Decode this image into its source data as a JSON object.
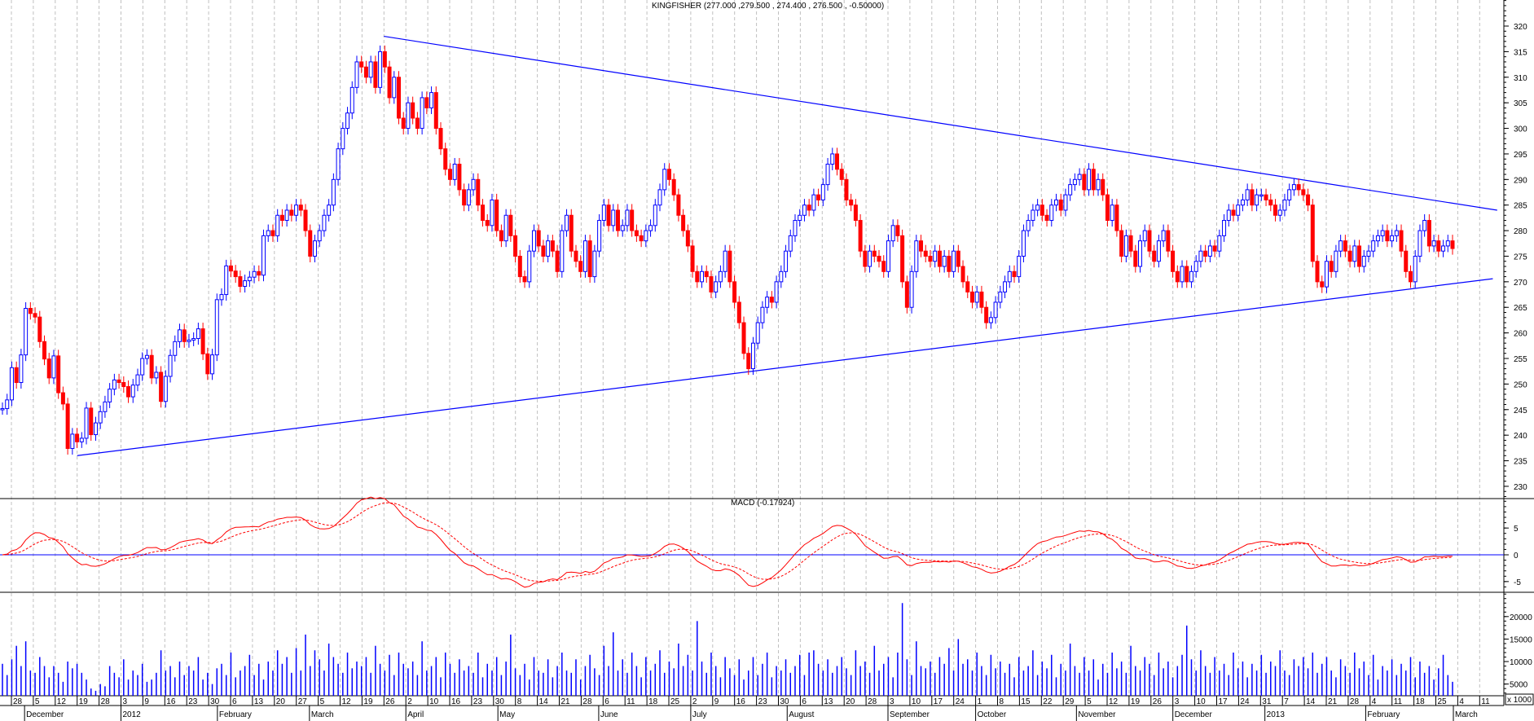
{
  "chart_data": [
    {
      "type": "candlestick",
      "title": "KINGFISHER (277.000 ,279.500 , 274.400 , 276.500 , -0.50000)",
      "ylim": [
        227.6,
        325.1
      ],
      "yticks": [
        230,
        235,
        240,
        245,
        250,
        255,
        260,
        265,
        270,
        275,
        280,
        285,
        290,
        295,
        300,
        305,
        310,
        315,
        320
      ],
      "grid": "vertical dashed at weekly ticks",
      "colors": {
        "up": "#0000ff",
        "down": "#ff0000",
        "trendline": "#0000ff"
      },
      "last_bar": {
        "open": 277.0,
        "high": 279.5,
        "low": 274.4,
        "close": 276.5,
        "change": -0.5
      },
      "close": [
        245.2,
        246.9,
        253.2,
        250.3,
        255.7,
        264.8,
        263.8,
        263.1,
        258.3,
        254.9,
        251.2,
        255.5,
        248.3,
        246.1,
        237.4,
        240.2,
        238.7,
        239.4,
        245.3,
        240.1,
        242.4,
        244.6,
        246.5,
        249,
        250.8,
        250.3,
        249.5,
        247.5,
        249.8,
        251.8,
        255,
        255.6,
        251.2,
        252.3,
        246.6,
        251.5,
        255.6,
        258.3,
        260.6,
        258.3,
        258.6,
        258.9,
        260.8,
        255.9,
        252,
        255.7,
        266.5,
        267.5,
        273.1,
        272.1,
        271,
        269.1,
        270.2,
        270.9,
        272,
        271.3,
        279,
        280,
        279,
        283,
        282,
        284,
        283,
        285,
        284,
        280,
        275,
        278,
        280,
        283,
        285,
        290,
        296,
        300,
        303,
        308,
        313,
        312,
        310,
        313,
        308,
        315,
        312,
        306,
        310,
        302,
        300,
        305,
        302,
        300,
        306,
        304,
        307,
        300,
        296,
        292,
        290,
        293,
        288,
        285,
        288,
        290,
        285,
        282,
        281,
        286,
        280,
        278,
        283,
        279,
        275,
        271,
        270,
        276,
        280,
        277,
        275,
        278,
        276,
        272,
        280,
        283,
        276,
        274,
        272,
        278,
        271,
        276,
        282,
        285,
        281,
        284,
        280,
        281,
        284,
        280,
        279,
        278,
        280,
        281,
        285,
        288,
        292,
        290,
        287,
        283,
        280,
        277,
        272,
        270,
        272,
        271,
        268,
        270,
        272,
        276,
        270,
        266,
        262,
        256,
        253,
        258,
        262,
        265,
        267,
        266,
        270,
        272,
        276,
        279,
        282,
        283,
        285,
        284,
        287,
        286,
        289,
        293,
        295,
        292,
        290,
        286,
        285,
        282,
        276,
        273,
        276,
        275,
        274,
        272,
        278,
        281,
        279,
        270,
        265,
        272,
        278,
        276,
        275,
        274,
        276,
        273,
        275,
        272,
        276,
        273,
        270,
        268,
        266,
        268,
        265,
        262,
        263,
        266,
        268,
        270,
        272,
        271,
        275,
        280,
        282,
        284,
        285,
        283,
        282,
        285,
        286,
        284,
        287,
        289,
        290,
        291,
        288,
        292,
        288,
        290,
        287,
        282,
        285,
        280,
        275,
        279,
        276,
        273,
        278,
        280,
        276,
        274,
        278,
        280,
        276,
        272,
        270,
        273,
        270,
        272,
        274,
        276,
        275,
        277,
        276,
        279,
        282,
        284,
        283,
        285,
        286,
        288,
        285,
        287,
        287,
        286,
        285,
        283,
        284,
        286,
        288,
        289,
        288,
        287,
        285,
        274,
        270,
        269,
        274,
        272,
        276,
        278,
        276,
        274,
        277,
        273,
        275,
        276,
        278,
        279,
        280,
        278,
        279,
        280,
        276,
        272,
        270,
        275,
        280,
        282,
        277,
        278,
        276,
        277,
        278,
        276.5
      ],
      "trendlines": [
        {
          "from": {
            "date": "2012-03-26",
            "price": 318
          },
          "to": {
            "date": "2013-03-15",
            "price": 284
          }
        },
        {
          "from": {
            "date": "2011-12-19",
            "price": 236
          },
          "to": {
            "date": "2013-03-14",
            "price": 270.6
          }
        }
      ]
    },
    {
      "type": "line",
      "title": "MACD (-0.17924)",
      "ylim": [
        -7,
        10.5
      ],
      "yticks": [
        -5,
        0,
        5
      ],
      "series": [
        {
          "style": "solid",
          "color": "#ff0000",
          "params": [
            12,
            26
          ]
        },
        {
          "style": "dashed",
          "color": "#ff0000",
          "params": [
            9
          ]
        }
      ],
      "zero_line_color": "#0000ff"
    },
    {
      "type": "bar",
      "ylim": [
        2400,
        25400
      ],
      "yticks": [
        5000,
        10000,
        15000,
        20000
      ],
      "unit_label": "x 1000",
      "color": "#0000ff",
      "values": [
        9500,
        7000,
        10500,
        13500,
        9000,
        14500,
        8000,
        7500,
        11000,
        9000,
        6500,
        9000,
        7500,
        5500,
        10000,
        8500,
        9500,
        7500,
        6000,
        4000,
        3500,
        5000,
        4500,
        9000,
        7500,
        6500,
        10500,
        6000,
        8000,
        7000,
        9500,
        5500,
        6000,
        7500,
        12500,
        8000,
        9000,
        6500,
        10000,
        7000,
        9000,
        8000,
        11000,
        6000,
        7500,
        5000,
        8500,
        9500,
        7000,
        12000,
        6500,
        8000,
        9000,
        11500,
        7000,
        9500,
        6000,
        10000,
        8000,
        12500,
        9500,
        11000,
        7500,
        13000,
        8000,
        16000,
        9000,
        12500,
        10500,
        8000,
        14000,
        11000,
        9500,
        7500,
        12000,
        8500,
        10000,
        9000,
        11000,
        7500,
        13500,
        9500,
        8000,
        11500,
        7000,
        12000,
        9500,
        8500,
        10000,
        7000,
        14500,
        8000,
        9000,
        11000,
        6500,
        12000,
        9500,
        7500,
        10500,
        8000,
        9000,
        7500,
        12000,
        6500,
        9500,
        8000,
        11000,
        7000,
        10000,
        16000,
        8500,
        7000,
        9500,
        6000,
        11000,
        8000,
        7500,
        10500,
        6500,
        9000,
        12000,
        8000,
        7500,
        10500,
        6000,
        9000,
        11500,
        8500,
        7000,
        13500,
        9000,
        16500,
        8000,
        10500,
        7500,
        12000,
        9000,
        6500,
        11000,
        8000,
        9500,
        12500,
        7500,
        10000,
        8500,
        14000,
        9000,
        11500,
        8000,
        19000,
        10000,
        7500,
        12000,
        9000,
        6500,
        11000,
        8500,
        7000,
        10500,
        6000,
        8000,
        11000,
        7000,
        9500,
        12000,
        6500,
        9000,
        8000,
        10500,
        7500,
        9000,
        11500,
        7000,
        12000,
        12500,
        9500,
        8000,
        10500,
        7500,
        9000,
        11000,
        8500,
        7000,
        12500,
        9000,
        10000,
        7500,
        13500,
        8000,
        9500,
        11000,
        6500,
        12000,
        23000,
        10500,
        7000,
        14500,
        9000,
        8500,
        10000,
        7500,
        11000,
        9500,
        13000,
        8000,
        15000,
        9500,
        10500,
        8000,
        12000,
        9000,
        7000,
        11500,
        8500,
        10000,
        7500,
        9500,
        6500,
        11000,
        8000,
        9000,
        12500,
        7000,
        10000,
        8500,
        11500,
        6500,
        9500,
        8000,
        14000,
        9000,
        7500,
        11000,
        8000,
        10500,
        6000,
        9500,
        7500,
        12000,
        8500,
        10000,
        7500,
        13500,
        9000,
        8000,
        11000,
        9500,
        7000,
        12000,
        8500,
        10000,
        6500,
        9000,
        11500,
        18000,
        10500,
        8000,
        12500,
        9000,
        7500,
        11000,
        8000,
        9500,
        7000,
        12000,
        8500,
        10000,
        6500,
        9500,
        8000,
        11500,
        7500,
        10000,
        9000,
        12500,
        8000,
        7000,
        10500,
        9000,
        11000,
        8500,
        12000,
        7500,
        9500,
        11000,
        8000,
        6500,
        10500,
        9000,
        7500,
        12000,
        8500,
        10000,
        7000,
        11500,
        6000,
        9000,
        8000,
        10500,
        7000,
        9500,
        8000,
        11000,
        6500,
        10000,
        7500,
        9000,
        6000,
        8500,
        11500,
        7000,
        5500
      ]
    }
  ],
  "x_axis": {
    "day_ticks": [
      "28",
      "5",
      "12",
      "19",
      "28",
      "3",
      "9",
      "16",
      "23",
      "30",
      "6",
      "13",
      "20",
      "27",
      "5",
      "12",
      "19",
      "26",
      "2",
      "10",
      "16",
      "23",
      "30",
      "8",
      "14",
      "21",
      "28",
      "6",
      "11",
      "18",
      "25",
      "2",
      "9",
      "16",
      "23",
      "30",
      "6",
      "13",
      "20",
      "28",
      "3",
      "10",
      "17",
      "24",
      "1",
      "8",
      "15",
      "22",
      "29",
      "5",
      "12",
      "19",
      "26",
      "3",
      "10",
      "17",
      "24",
      "31",
      "7",
      "14",
      "21",
      "28",
      "4",
      "11",
      "18",
      "25",
      "4",
      "11"
    ],
    "months": [
      "December",
      "2012",
      "February",
      "March",
      "April",
      "May",
      "June",
      "July",
      "August",
      "September",
      "October",
      "November",
      "December",
      "2013",
      "February",
      "March"
    ]
  }
}
